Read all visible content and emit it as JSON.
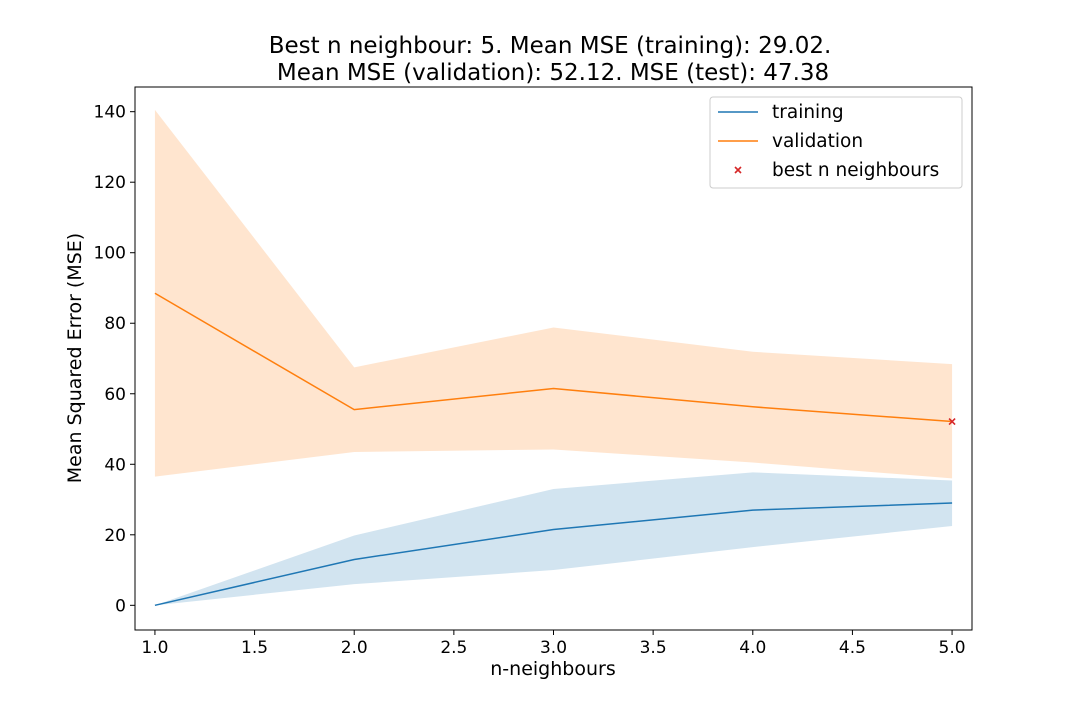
{
  "chart_data": {
    "type": "line",
    "title_line1": "Best n neighbour: 5. Mean MSE (training): 29.02.",
    "title_line2": "Mean MSE (validation): 52.12. MSE (test): 47.38",
    "xlabel": "n-neighbours",
    "ylabel": "Mean Squared Error (MSE)",
    "xlim": [
      0.9,
      5.1
    ],
    "ylim": [
      -7,
      147
    ],
    "x_ticks": [
      1.0,
      1.5,
      2.0,
      2.5,
      3.0,
      3.5,
      4.0,
      4.5,
      5.0
    ],
    "x_tick_labels": [
      "1.0",
      "1.5",
      "2.0",
      "2.5",
      "3.0",
      "3.5",
      "4.0",
      "4.5",
      "5.0"
    ],
    "y_ticks": [
      0,
      20,
      40,
      60,
      80,
      100,
      120,
      140
    ],
    "y_tick_labels": [
      "0",
      "20",
      "40",
      "60",
      "80",
      "100",
      "120",
      "140"
    ],
    "x": [
      1,
      2,
      3,
      4,
      5
    ],
    "series": [
      {
        "name": "training",
        "color": "#1f77b4",
        "band_color": "#1f77b4",
        "values": [
          0.0,
          13.0,
          21.5,
          27.0,
          29.02
        ],
        "lower": [
          0.0,
          6.0,
          10.0,
          16.5,
          22.5
        ],
        "upper": [
          0.0,
          19.8,
          33.0,
          37.7,
          35.4
        ]
      },
      {
        "name": "validation",
        "color": "#ff7f0e",
        "band_color": "#ff7f0e",
        "values": [
          88.5,
          55.5,
          61.5,
          56.3,
          52.12
        ],
        "lower": [
          36.5,
          43.5,
          44.2,
          40.5,
          36.0
        ],
        "upper": [
          140.5,
          67.5,
          78.8,
          71.9,
          68.4
        ]
      }
    ],
    "best_point": {
      "name": "best n neighbours",
      "x": 5,
      "y": 52.12,
      "color": "#d62728",
      "marker": "x"
    },
    "legend_position": "top-right",
    "grid": false
  }
}
